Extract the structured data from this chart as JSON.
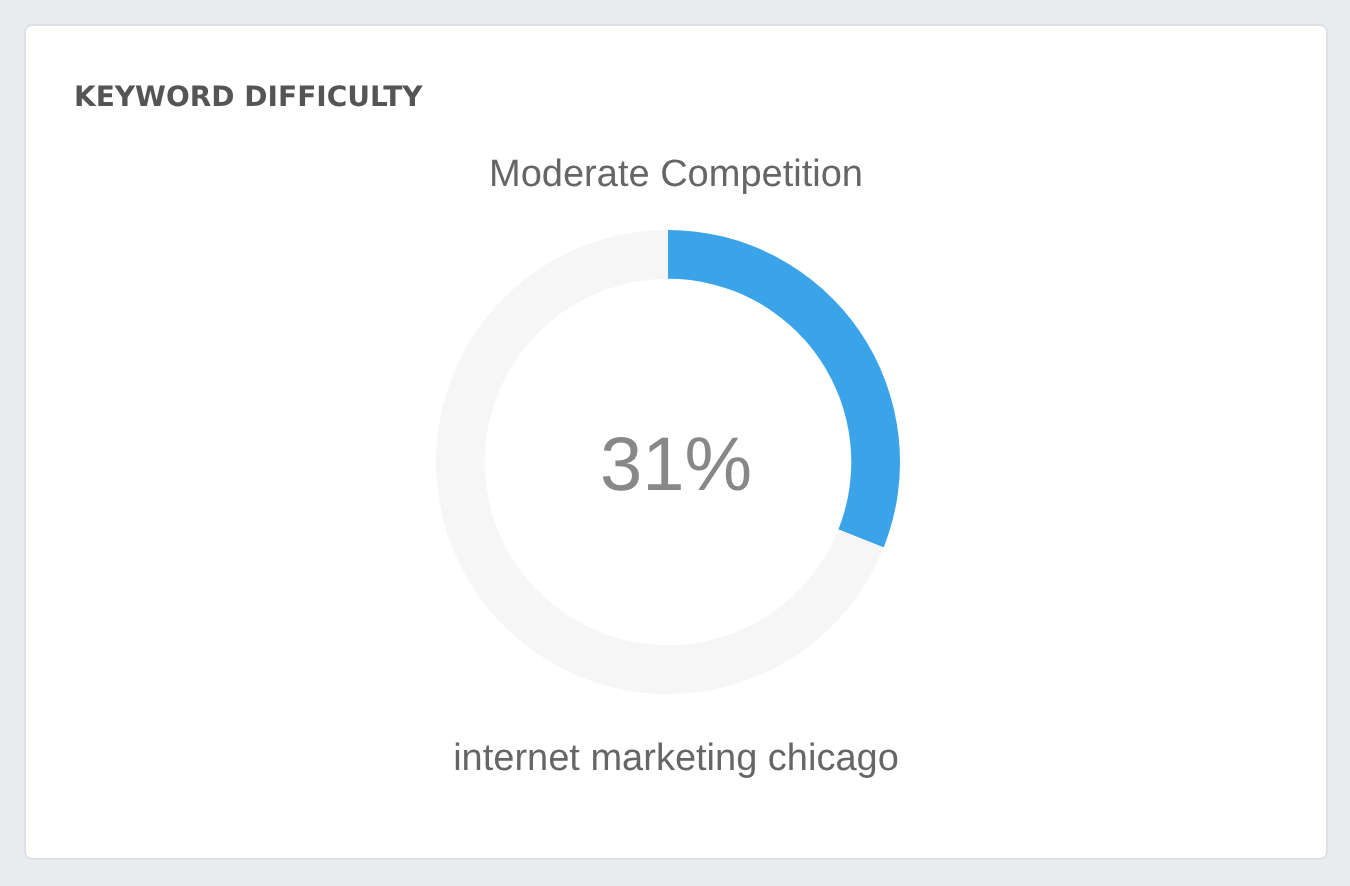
{
  "chart_data": {
    "type": "donut",
    "title": "KEYWORD DIFFICULTY",
    "subtitle": "Moderate Competition",
    "categories": [
      null,
      null
    ],
    "values": [
      31,
      69
    ],
    "colors": [
      "#3ba4e9",
      "#f6f6f6"
    ],
    "annotations": [
      "31%",
      "internet marketing chicago"
    ]
  }
}
